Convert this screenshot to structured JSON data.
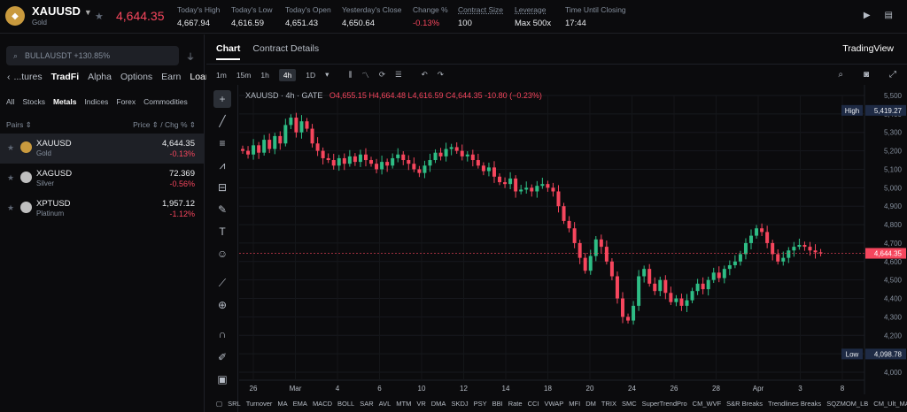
{
  "header": {
    "symbol": "XAUUSD",
    "subtitle": "Gold",
    "coin_glyph": "◆",
    "last_price": "4,644.35",
    "stats": [
      {
        "label": "Today's High",
        "value": "4,667.94"
      },
      {
        "label": "Today's Low",
        "value": "4,616.59"
      },
      {
        "label": "Today's Open",
        "value": "4,651.43"
      },
      {
        "label": "Yesterday's Close",
        "value": "4,650.64"
      },
      {
        "label": "Change %",
        "value": "-0.13%"
      },
      {
        "label": "Contract Size",
        "value": "100"
      },
      {
        "label": "Leverage",
        "value": "Max 500x"
      },
      {
        "label": "Time Until Closing",
        "value": "17:44"
      }
    ]
  },
  "sidebar": {
    "search_placeholder": "BULLAUSDT +130.85%",
    "categories": [
      "...tures",
      "TradFi",
      "Alpha",
      "Options",
      "Earn",
      "Loan"
    ],
    "subtabs": [
      "All",
      "Stocks",
      "Metals",
      "Indices",
      "Forex",
      "Commodities"
    ],
    "col_pairs": "Pairs ⇕",
    "col_price": "Price ⇕ / Chg % ⇕",
    "pairs": [
      {
        "name": "XAUUSD",
        "sub": "Gold",
        "price": "4,644.35",
        "chg": "-0.13%"
      },
      {
        "name": "XAGUSD",
        "sub": "Silver",
        "price": "72.369",
        "chg": "-0.56%"
      },
      {
        "name": "XPTUSD",
        "sub": "Platinum",
        "price": "1,957.12",
        "chg": "-1.12%"
      }
    ]
  },
  "main": {
    "tabs": [
      "Chart",
      "Contract Details"
    ],
    "tv_label": "TradingView",
    "timeframes": [
      "1m",
      "15m",
      "1h",
      "4h",
      "1D"
    ],
    "legend": {
      "title": "XAUUSD · 4h · GATE",
      "o": "O4,655.15",
      "h": "H4,664.48",
      "l": "L4,616.59",
      "c": "C4,644.35",
      "chg": "-10.80 (−0.23%)"
    },
    "indicators": [
      "SRL",
      "Turnover",
      "MA",
      "EMA",
      "MACD",
      "BOLL",
      "SAR",
      "AVL",
      "MTM",
      "VR",
      "DMA",
      "SKDJ",
      "PSY",
      "BBI",
      "Rate",
      "CCI",
      "VWAP",
      "MFI",
      "DM",
      "TRIX",
      "SMC",
      "SuperTrendPro",
      "CM_WVF",
      "S&R Breaks",
      "Trendlines Breaks",
      "SQZMOM_LB",
      "CM_Ult_MACD",
      "W..."
    ]
  },
  "chart_data": {
    "type": "candlestick",
    "ylim": [
      4000,
      5500
    ],
    "yticks": [
      5500,
      5400,
      5300,
      5200,
      5100,
      5000,
      4900,
      4800,
      4700,
      4600,
      4500,
      4400,
      4300,
      4200,
      4100,
      4000
    ],
    "xticks": [
      "26",
      "Mar",
      "4",
      "6",
      "10",
      "12",
      "14",
      "18",
      "20",
      "24",
      "26",
      "28",
      "Apr",
      "3",
      "8"
    ],
    "high_marker": {
      "label": "High",
      "value": "5,419.27"
    },
    "low_marker": {
      "label": "Low",
      "value": "4,098.78"
    },
    "last_marker": {
      "value": "4,644.35"
    },
    "up_color": "#2ebd85",
    "down_color": "#f6465d",
    "close_path": [
      5200,
      5180,
      5230,
      5190,
      5260,
      5210,
      5280,
      5240,
      5340,
      5380,
      5300,
      5360,
      5320,
      5240,
      5200,
      5160,
      5150,
      5120,
      5160,
      5130,
      5170,
      5140,
      5180,
      5150,
      5130,
      5100,
      5140,
      5120,
      5160,
      5180,
      5150,
      5130,
      5100,
      5080,
      5120,
      5150,
      5190,
      5170,
      5210,
      5220,
      5200,
      5170,
      5180,
      5150,
      5120,
      5090,
      5110,
      5060,
      5030,
      5020,
      5050,
      4980,
      4990,
      5000,
      4980,
      5010,
      5020,
      5000,
      4980,
      4900,
      4820,
      4780,
      4700,
      4620,
      4550,
      4630,
      4720,
      4680,
      4600,
      4520,
      4400,
      4300,
      4280,
      4360,
      4520,
      4560,
      4480,
      4440,
      4500,
      4430,
      4380,
      4400,
      4360,
      4390,
      4440,
      4480,
      4450,
      4500,
      4540,
      4510,
      4560,
      4580,
      4600,
      4640,
      4700,
      4740,
      4780,
      4760,
      4700,
      4640,
      4600,
      4620,
      4660,
      4680,
      4690,
      4680,
      4660,
      4650,
      4644
    ]
  }
}
